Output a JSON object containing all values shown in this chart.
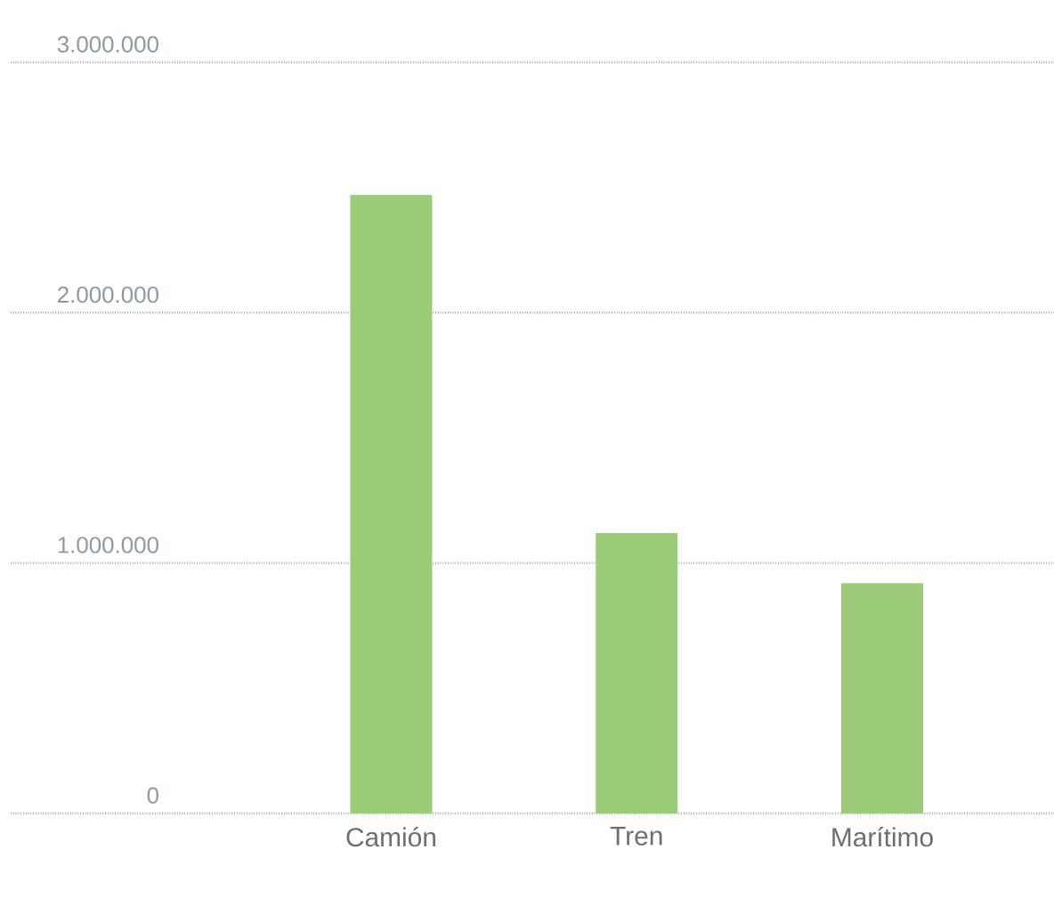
{
  "chart_data": {
    "type": "bar",
    "categories": [
      "Camión",
      "Tren",
      "Marítimo"
    ],
    "values": [
      2470000,
      1120000,
      920000
    ],
    "color": "#9ccc7a",
    "ylim": [
      0,
      3000000
    ],
    "yticks": [
      {
        "value": 0,
        "label": "0"
      },
      {
        "value": 1000000,
        "label": "1.000.000"
      },
      {
        "value": 2000000,
        "label": "2.000.000"
      },
      {
        "value": 3000000,
        "label": "3.000.000"
      }
    ],
    "grid": "y"
  }
}
